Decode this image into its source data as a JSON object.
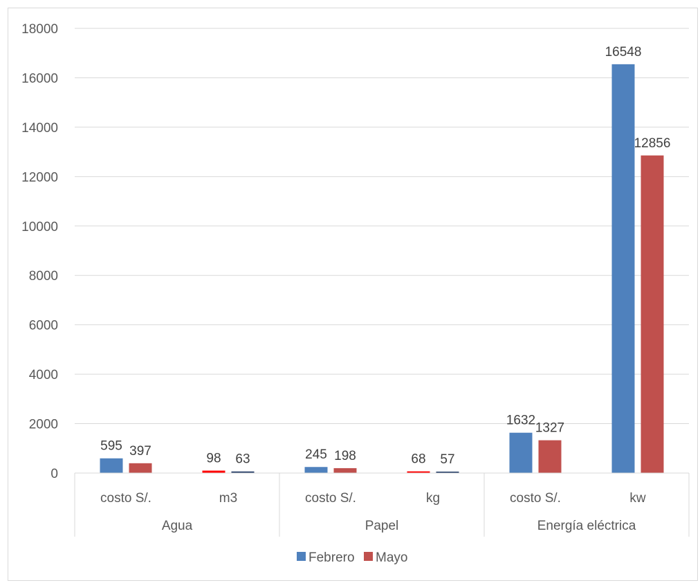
{
  "chart_data": {
    "type": "bar",
    "groups": [
      {
        "label": "Agua",
        "categories": [
          "costo S/.",
          "m3"
        ]
      },
      {
        "label": "Papel",
        "categories": [
          "costo S/.",
          "kg"
        ]
      },
      {
        "label": "Energía eléctrica",
        "categories": [
          "costo S/.",
          "kw"
        ]
      }
    ],
    "categories": [
      "costo S/.",
      "m3",
      "costo S/.",
      "kg",
      "costo S/.",
      "kw"
    ],
    "series": [
      {
        "name": "Febrero",
        "color": "#4f81bd",
        "values": [
          595,
          98,
          245,
          68,
          1632,
          16548
        ]
      },
      {
        "name": "Mayo",
        "color": "#c0504d",
        "values": [
          397,
          63,
          198,
          57,
          1327,
          12856
        ]
      }
    ],
    "bar_color_overrides": {
      "Febrero": {
        "1": "#ff0000",
        "3": "#ff0000"
      },
      "Mayo": {
        "1": "#1f3864",
        "3": "#1f3864"
      }
    },
    "ylim": [
      0,
      18000
    ],
    "yticks": [
      0,
      2000,
      4000,
      6000,
      8000,
      10000,
      12000,
      14000,
      16000,
      18000
    ],
    "grid": true,
    "legend": "bottom",
    "title": "",
    "xlabel": "",
    "ylabel": ""
  }
}
